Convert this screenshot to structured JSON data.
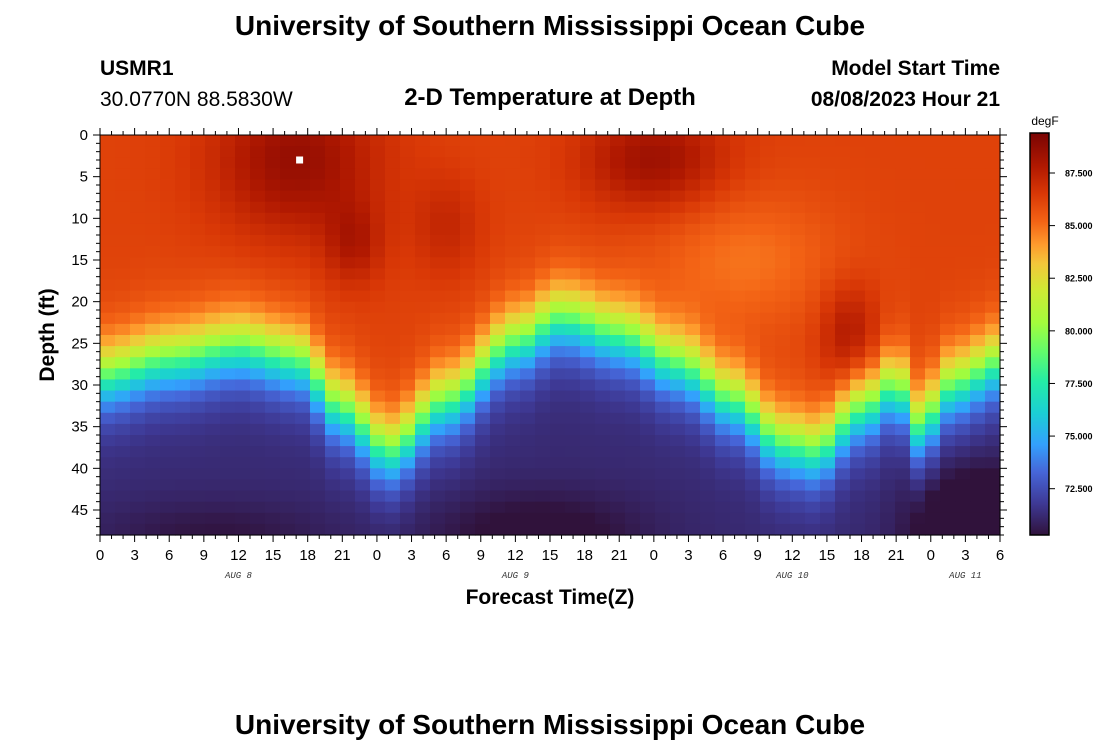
{
  "header": {
    "title": "University of Southern Mississippi Ocean Cube",
    "station_id": "USMR1",
    "coordinates": "30.0770N  88.5830W",
    "subtitle": "2-D Temperature at Depth",
    "model_label": "Model Start Time",
    "model_time": "08/08/2023 Hour 21"
  },
  "footer": {
    "title": "University of Southern Mississippi Ocean Cube"
  },
  "chart_data": {
    "type": "heatmap",
    "title": "2-D Temperature at Depth",
    "xlabel": "Forecast Time(Z)",
    "ylabel": "Depth (ft)",
    "x_range_hours": [
      0,
      78
    ],
    "x_ticks_hours": [
      0,
      3,
      6,
      9,
      12,
      15,
      18,
      21,
      24,
      27,
      30,
      33,
      36,
      39,
      42,
      45,
      48,
      51,
      54,
      57,
      60,
      63,
      66,
      69,
      72,
      75,
      78
    ],
    "x_tick_labels": [
      "0",
      "3",
      "6",
      "9",
      "12",
      "15",
      "18",
      "21",
      "0",
      "3",
      "6",
      "9",
      "12",
      "15",
      "18",
      "21",
      "0",
      "3",
      "6",
      "9",
      "12",
      "15",
      "18",
      "21",
      "0",
      "3",
      "6"
    ],
    "day_labels": [
      {
        "label": "AUG 8",
        "hour": 12
      },
      {
        "label": "AUG 9",
        "hour": 36
      },
      {
        "label": "AUG 10",
        "hour": 60
      },
      {
        "label": "AUG 11",
        "hour": 75
      }
    ],
    "y_range_ft": [
      0,
      48
    ],
    "y_ticks": [
      0,
      5,
      10,
      15,
      20,
      25,
      30,
      35,
      40,
      45
    ],
    "y_tick_labels": [
      "0",
      "5",
      "10",
      "15",
      "20",
      "25",
      "30",
      "35",
      "40",
      "45"
    ],
    "grid": {
      "cols": 60,
      "rows": 36,
      "field": {
        "surface_temp_f": 86.2,
        "bottom_temp_f": 71.2,
        "thermocline_knots_hours": [
          0,
          6,
          12,
          17,
          21,
          25,
          30,
          36,
          40,
          45,
          50,
          55,
          59,
          62,
          66,
          69,
          71,
          74,
          78
        ],
        "thermocline_knots_depth_ft": [
          29,
          27,
          25.5,
          27,
          33,
          38,
          32,
          25,
          22,
          24,
          27.5,
          32,
          37,
          38,
          33,
          30,
          35,
          30,
          27.5
        ],
        "thermocline_halfwidth_ft": 5.5
      },
      "anomalies": [
        {
          "hour": 17,
          "depth_ft": 3,
          "sigma_h": 7,
          "sigma_d": 9,
          "delta_f": 2.4
        },
        {
          "hour": 22,
          "depth_ft": 13,
          "sigma_h": 2.5,
          "sigma_d": 5,
          "delta_f": 1.5
        },
        {
          "hour": 48,
          "depth_ft": 3,
          "sigma_h": 6,
          "sigma_d": 6,
          "delta_f": 2.2
        },
        {
          "hour": 30,
          "depth_ft": 11,
          "sigma_h": 3,
          "sigma_d": 6,
          "delta_f": 1.0
        },
        {
          "hour": 56,
          "depth_ft": 15,
          "sigma_h": 8,
          "sigma_d": 8,
          "delta_f": -1.3
        },
        {
          "hour": 65,
          "depth_ft": 24,
          "sigma_h": 2.5,
          "sigma_d": 6,
          "delta_f": 1.8
        },
        {
          "hour": 38,
          "depth_ft": 48,
          "sigma_h": 9,
          "sigma_d": 5,
          "delta_f": -1.3
        },
        {
          "hour": 76,
          "depth_ft": 48,
          "sigma_h": 5,
          "sigma_d": 7,
          "delta_f": -3.2
        },
        {
          "hour": 10,
          "depth_ft": 48,
          "sigma_h": 10,
          "sigma_d": 4,
          "delta_f": -0.8
        }
      ]
    },
    "marker": {
      "hour": 17.3,
      "depth_ft": 3,
      "color": "#ffffff"
    },
    "colorbar": {
      "unit": "degF",
      "min": 70.3,
      "max": 89.4,
      "ticks": [
        72.5,
        75.0,
        77.5,
        80.0,
        82.5,
        85.0,
        87.5
      ],
      "tick_labels": [
        "72.500",
        "75.000",
        "77.500",
        "80.000",
        "82.500",
        "85.000",
        "87.500"
      ],
      "stops": [
        {
          "v": 70.3,
          "c": "#30123b"
        },
        {
          "v": 71.8,
          "c": "#3e3995"
        },
        {
          "v": 73.3,
          "c": "#4666d9"
        },
        {
          "v": 74.6,
          "c": "#33a0fd"
        },
        {
          "v": 76.1,
          "c": "#1bcfd4"
        },
        {
          "v": 77.6,
          "c": "#24eca6"
        },
        {
          "v": 79.0,
          "c": "#61fc6c"
        },
        {
          "v": 80.4,
          "c": "#a4fc3c"
        },
        {
          "v": 82.0,
          "c": "#d1e834"
        },
        {
          "v": 83.2,
          "c": "#f3c63a"
        },
        {
          "v": 84.1,
          "c": "#fe9b2d"
        },
        {
          "v": 85.2,
          "c": "#f36315"
        },
        {
          "v": 86.5,
          "c": "#d93806"
        },
        {
          "v": 87.8,
          "c": "#b11901"
        },
        {
          "v": 89.4,
          "c": "#7a0403"
        }
      ]
    }
  }
}
